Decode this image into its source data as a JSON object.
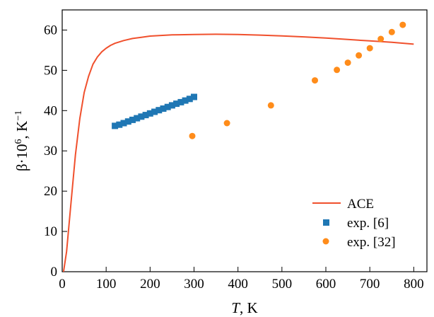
{
  "chart_data": {
    "type": "scatter",
    "xlabel": {
      "italic": "T",
      "rest": ", K"
    },
    "ylabel": {
      "prefix": "β·10",
      "sup1": "6",
      "mid": ", K",
      "sup2": "−1"
    },
    "xlim": [
      0,
      830
    ],
    "ylim": [
      0,
      65
    ],
    "xticks": [
      0,
      100,
      200,
      300,
      400,
      500,
      600,
      700,
      800
    ],
    "yticks": [
      0,
      10,
      20,
      30,
      40,
      50,
      60
    ],
    "grid": false,
    "legend_position": "bottom-right",
    "series": [
      {
        "name": "ACE",
        "kind": "line",
        "color": "#f0502d",
        "x": [
          3,
          10,
          20,
          30,
          40,
          50,
          60,
          70,
          80,
          90,
          100,
          110,
          120,
          140,
          160,
          180,
          200,
          250,
          300,
          350,
          400,
          450,
          500,
          550,
          600,
          650,
          700,
          750,
          800
        ],
        "y": [
          0,
          5,
          17,
          29,
          38,
          44.5,
          48.5,
          51.5,
          53.3,
          54.6,
          55.5,
          56.2,
          56.7,
          57.4,
          57.9,
          58.2,
          58.5,
          58.8,
          58.9,
          58.95,
          58.9,
          58.75,
          58.55,
          58.3,
          58.0,
          57.65,
          57.3,
          56.95,
          56.5
        ]
      },
      {
        "name": "exp. [6]",
        "kind": "square",
        "color": "#1f77b4",
        "x": [
          120,
          130,
          140,
          150,
          160,
          170,
          180,
          190,
          200,
          210,
          220,
          230,
          240,
          250,
          260,
          270,
          280,
          290,
          300
        ],
        "y": [
          36.2,
          36.5,
          36.9,
          37.3,
          37.7,
          38.1,
          38.5,
          38.9,
          39.3,
          39.7,
          40.1,
          40.5,
          40.9,
          41.3,
          41.7,
          42.1,
          42.5,
          42.9,
          43.4
        ]
      },
      {
        "name": "exp. [32]",
        "kind": "circle",
        "color": "#ff8c1a",
        "x": [
          296,
          375,
          475,
          575,
          625,
          650,
          675,
          700,
          725,
          750,
          775
        ],
        "y": [
          33.7,
          36.9,
          41.3,
          47.5,
          50.1,
          51.9,
          53.7,
          55.5,
          57.8,
          59.5,
          61.3
        ]
      }
    ]
  }
}
